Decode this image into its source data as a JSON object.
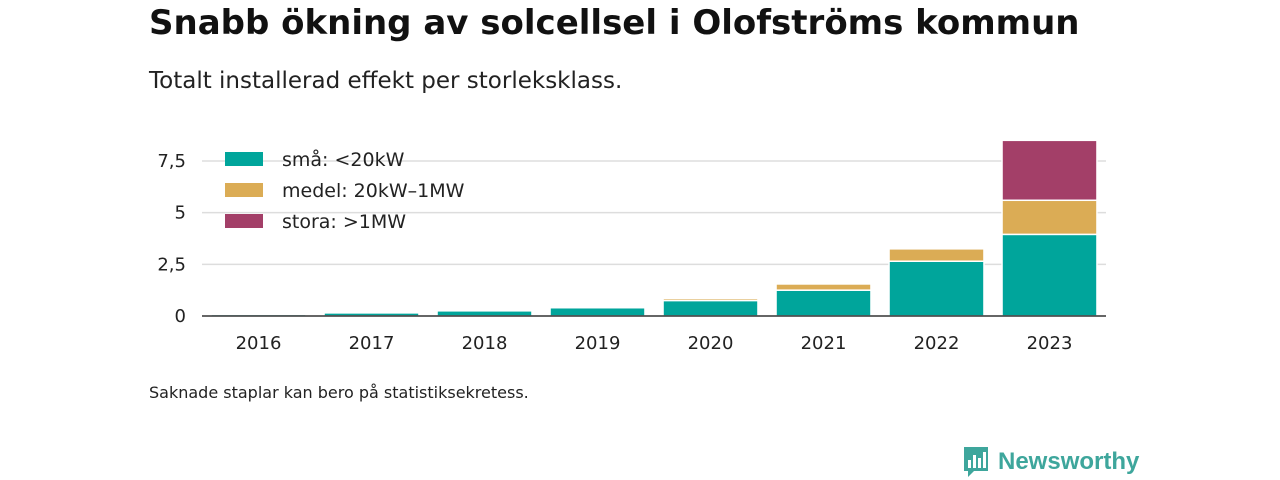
{
  "title": "Snabb ökning av solcellsel i Olofströms kommun",
  "subtitle": "Totalt installerad effekt per storleksklass.",
  "note": "Saknade staplar kan bero på statistiksekretess.",
  "brand": {
    "name": "Newsworthy",
    "color": "#3ea69c",
    "icon": "bar-chart-logo-icon"
  },
  "chart_data": {
    "type": "bar",
    "stacked": true,
    "categories": [
      "2016",
      "2017",
      "2018",
      "2019",
      "2020",
      "2021",
      "2022",
      "2023"
    ],
    "series": [
      {
        "name": "små: <20kW",
        "color": "#00a59b",
        "values": [
          0.08,
          0.15,
          0.25,
          0.4,
          0.75,
          1.25,
          2.65,
          3.95
        ]
      },
      {
        "name": "medel: 20kW–1MW",
        "color": "#dbac55",
        "values": [
          0,
          0,
          0,
          0,
          0.1,
          0.3,
          0.6,
          1.65
        ]
      },
      {
        "name": "stora: >1MW",
        "color": "#a33f68",
        "values": [
          0,
          0,
          0,
          0,
          0,
          0,
          0,
          2.9
        ]
      }
    ],
    "ylim": [
      0,
      9
    ],
    "yticks": [
      0,
      2.5,
      5,
      7.5
    ],
    "ytick_labels": [
      "0",
      "2,5",
      "5",
      "7,5"
    ],
    "xlabel": "",
    "ylabel": "",
    "grid": true,
    "legend_position": "top-left"
  }
}
